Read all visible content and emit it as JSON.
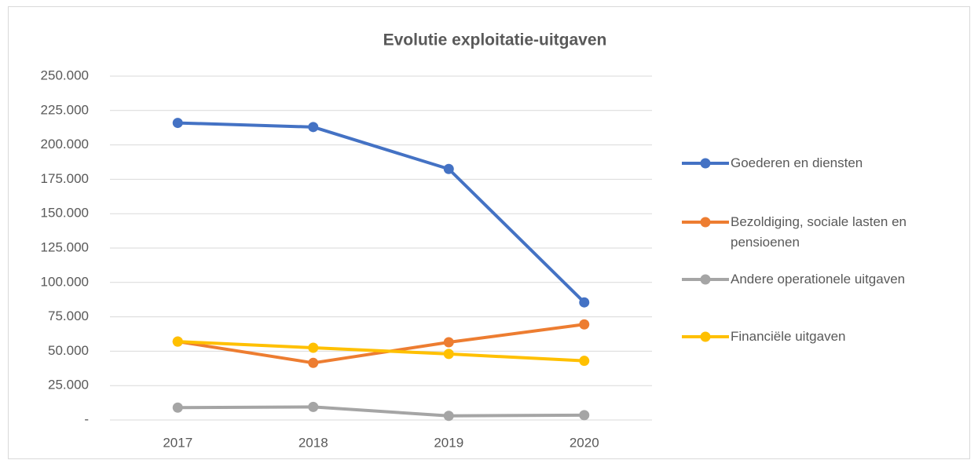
{
  "chart_data": {
    "type": "line",
    "title": "Evolutie exploitatie-uitgaven",
    "categories": [
      "2017",
      "2018",
      "2019",
      "2020"
    ],
    "series": [
      {
        "name": "Goederen en diensten",
        "color": "#4472c4",
        "values": [
          216000,
          213000,
          182500,
          85500
        ]
      },
      {
        "name": "Bezoldiging, sociale lasten en pensioenen",
        "color": "#ed7d31",
        "values": [
          57000,
          41500,
          56500,
          69500
        ]
      },
      {
        "name": "Andere operationele uitgaven",
        "color": "#a5a5a5",
        "values": [
          9000,
          9500,
          3000,
          3500
        ]
      },
      {
        "name": "Financiële uitgaven",
        "color": "#ffc000",
        "values": [
          57000,
          52500,
          48000,
          43000
        ]
      }
    ],
    "ylim": [
      0,
      250000
    ],
    "yticks": [
      {
        "value": 0,
        "label": "-"
      },
      {
        "value": 25000,
        "label": "25.000"
      },
      {
        "value": 50000,
        "label": "50.000"
      },
      {
        "value": 75000,
        "label": "75.000"
      },
      {
        "value": 100000,
        "label": "100.000"
      },
      {
        "value": 125000,
        "label": "125.000"
      },
      {
        "value": 150000,
        "label": "150.000"
      },
      {
        "value": 175000,
        "label": "175.000"
      },
      {
        "value": 200000,
        "label": "200.000"
      },
      {
        "value": 225000,
        "label": "225.000"
      },
      {
        "value": 250000,
        "label": "250.000"
      }
    ],
    "grid": true,
    "legend": "right"
  }
}
